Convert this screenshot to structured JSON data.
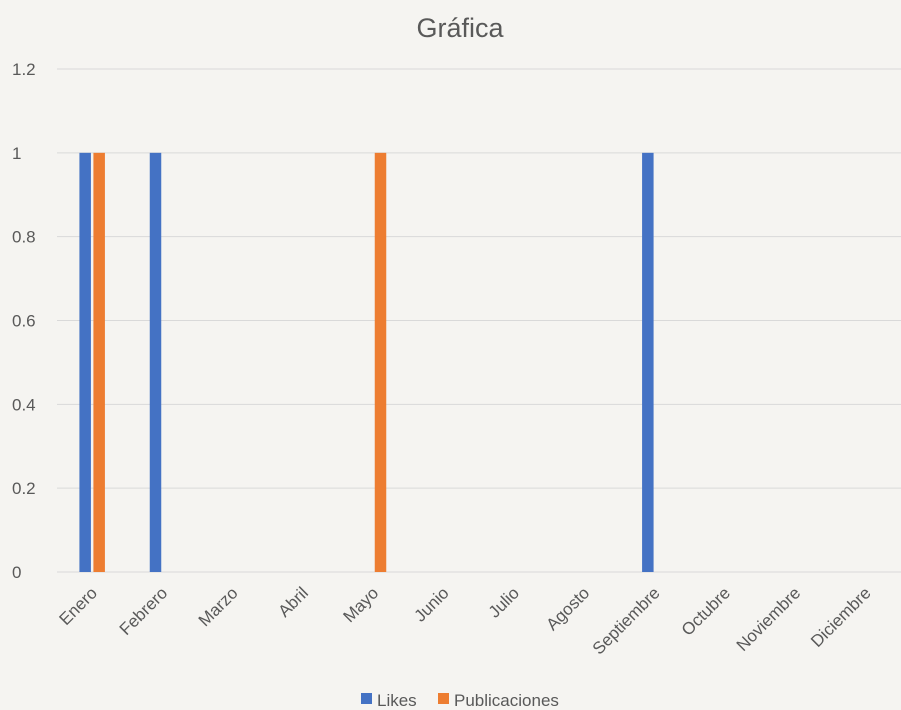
{
  "chart_data": {
    "type": "bar",
    "title": "Gráfica",
    "xlabel": "",
    "ylabel": "",
    "categories": [
      "Enero",
      "Febrero",
      "Marzo",
      "Abril",
      "Mayo",
      "Junio",
      "Julio",
      "Agosto",
      "Septiembre",
      "Octubre",
      "Noviembre",
      "Diciembre"
    ],
    "series": [
      {
        "name": "Likes",
        "color": "#4472c4",
        "values": [
          1,
          1,
          0,
          0,
          0,
          0,
          0,
          0,
          1,
          0,
          0,
          0
        ]
      },
      {
        "name": "Publicaciones",
        "color": "#ed7d31",
        "values": [
          1,
          0,
          0,
          0,
          1,
          0,
          0,
          0,
          0,
          0,
          0,
          0
        ]
      }
    ],
    "ylim": [
      0,
      1.2
    ],
    "yticks": [
      "0",
      "0.2",
      "0.4",
      "0.6",
      "0.8",
      "1",
      "1.2"
    ],
    "grid": true,
    "legend_position": "bottom"
  }
}
